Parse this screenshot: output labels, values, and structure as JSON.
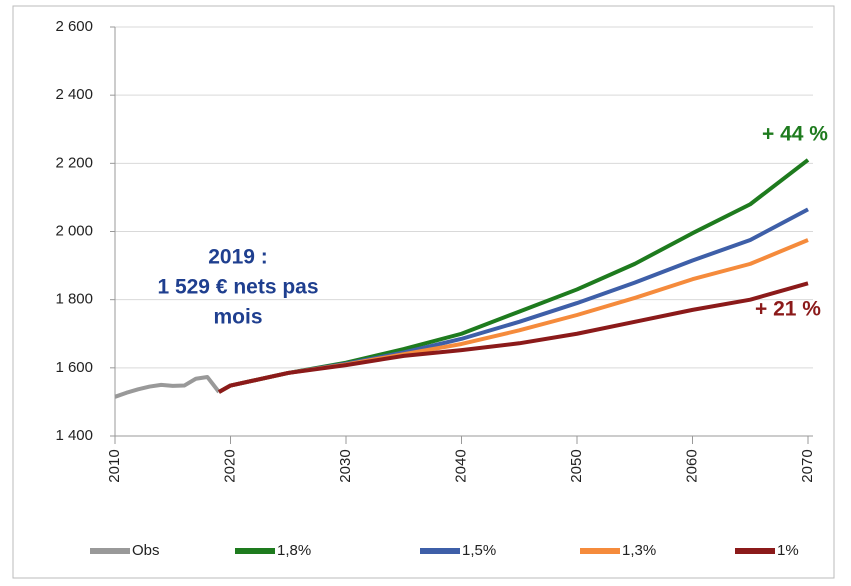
{
  "chart_data": {
    "type": "line",
    "x": [
      2010,
      2011,
      2012,
      2013,
      2014,
      2015,
      2016,
      2017,
      2018,
      2019,
      2020,
      2025,
      2030,
      2035,
      2040,
      2045,
      2050,
      2055,
      2060,
      2065,
      2070
    ],
    "series": [
      {
        "name": "Obs",
        "color": "#999999",
        "values": [
          1515,
          1527,
          1537,
          1545,
          1550,
          1547,
          1548,
          1568,
          1573,
          1529,
          null,
          null,
          null,
          null,
          null,
          null,
          null,
          null,
          null,
          null,
          null
        ]
      },
      {
        "name": "1,8%",
        "color": "#1e7b1e",
        "values": [
          null,
          null,
          null,
          null,
          null,
          null,
          null,
          null,
          null,
          1529,
          1548,
          1585,
          1615,
          1655,
          1700,
          1765,
          1830,
          1905,
          1995,
          2080,
          2210
        ]
      },
      {
        "name": "1,5%",
        "color": "#3e5fa8",
        "values": [
          null,
          null,
          null,
          null,
          null,
          null,
          null,
          null,
          null,
          1529,
          1548,
          1585,
          1612,
          1645,
          1685,
          1735,
          1790,
          1850,
          1915,
          1975,
          2065
        ]
      },
      {
        "name": "1,3%",
        "color": "#f58b3c",
        "values": [
          null,
          null,
          null,
          null,
          null,
          null,
          null,
          null,
          null,
          1529,
          1548,
          1585,
          1610,
          1640,
          1670,
          1710,
          1755,
          1805,
          1860,
          1905,
          1975
        ]
      },
      {
        "name": "1%",
        "color": "#8b1a1a",
        "values": [
          null,
          null,
          null,
          null,
          null,
          null,
          null,
          null,
          null,
          1529,
          1548,
          1585,
          1608,
          1635,
          1652,
          1672,
          1700,
          1735,
          1770,
          1800,
          1848
        ]
      }
    ],
    "xlim": [
      2010,
      2070
    ],
    "xticks": [
      2010,
      2020,
      2030,
      2040,
      2050,
      2060,
      2070
    ],
    "ylim": [
      1400,
      2600
    ],
    "yticks": [
      {
        "value": 1400,
        "label": "1 400"
      },
      {
        "value": 1600,
        "label": "1 600"
      },
      {
        "value": 1800,
        "label": "1 800"
      },
      {
        "value": 2000,
        "label": "2 000"
      },
      {
        "value": 2200,
        "label": "2 200"
      },
      {
        "value": 2400,
        "label": "2 400"
      },
      {
        "value": 2600,
        "label": "2 600"
      }
    ],
    "grid": true,
    "legend": "bottom",
    "annotations": [
      {
        "lines": [
          "2019 :",
          "1 529 € nets pas",
          "mois"
        ],
        "color": "#1f3f8f"
      },
      {
        "lines": [
          "+ 44 %"
        ],
        "color": "#1e7b1e"
      },
      {
        "lines": [
          "+ 21 %"
        ],
        "color": "#8b1a1a"
      }
    ]
  }
}
